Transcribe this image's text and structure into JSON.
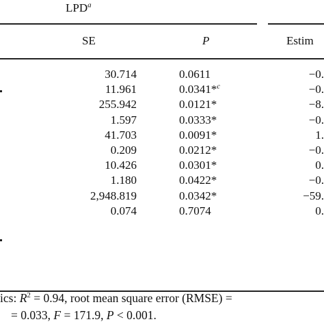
{
  "header": {
    "group_label": "LPD",
    "group_sup": "a",
    "columns": [
      "SE",
      "P",
      "Estim"
    ]
  },
  "rows": [
    {
      "se": "30.714",
      "p": "0.0611",
      "p_sup": "",
      "est": "−0."
    },
    {
      "se": "11.961",
      "p": "0.0341*",
      "p_sup": "c",
      "est": "−0."
    },
    {
      "se": "255.942",
      "p": "0.0121*",
      "p_sup": "",
      "est": "−8."
    },
    {
      "se": "1.597",
      "p": "0.0333*",
      "p_sup": "",
      "est": "−0."
    },
    {
      "se": "41.703",
      "p": "0.0091*",
      "p_sup": "",
      "est": "1."
    },
    {
      "se": "0.209",
      "p": "0.0212*",
      "p_sup": "",
      "est": "−0."
    },
    {
      "se": "10.426",
      "p": "0.0301*",
      "p_sup": "",
      "est": "0."
    },
    {
      "se": "1.180",
      "p": "0.0422*",
      "p_sup": "",
      "est": "−0."
    },
    {
      "se": "2,948.819",
      "p": "0.0342*",
      "p_sup": "",
      "est": "−59."
    },
    {
      "se": "0.074",
      "p": "0.7074",
      "p_sup": "",
      "est": "0."
    }
  ],
  "footnote": {
    "line1_prefix": "ics: ",
    "r2_sym": "R",
    "r2_sup": "2",
    "line1_rest": " = 0.94, root mean square error (RMSE) =",
    "line2_prefix": "= 0.033, ",
    "f_sym": "F",
    "f_rest": " = 171.9, ",
    "p_sym": "P",
    "p_rest": " < 0.001."
  }
}
